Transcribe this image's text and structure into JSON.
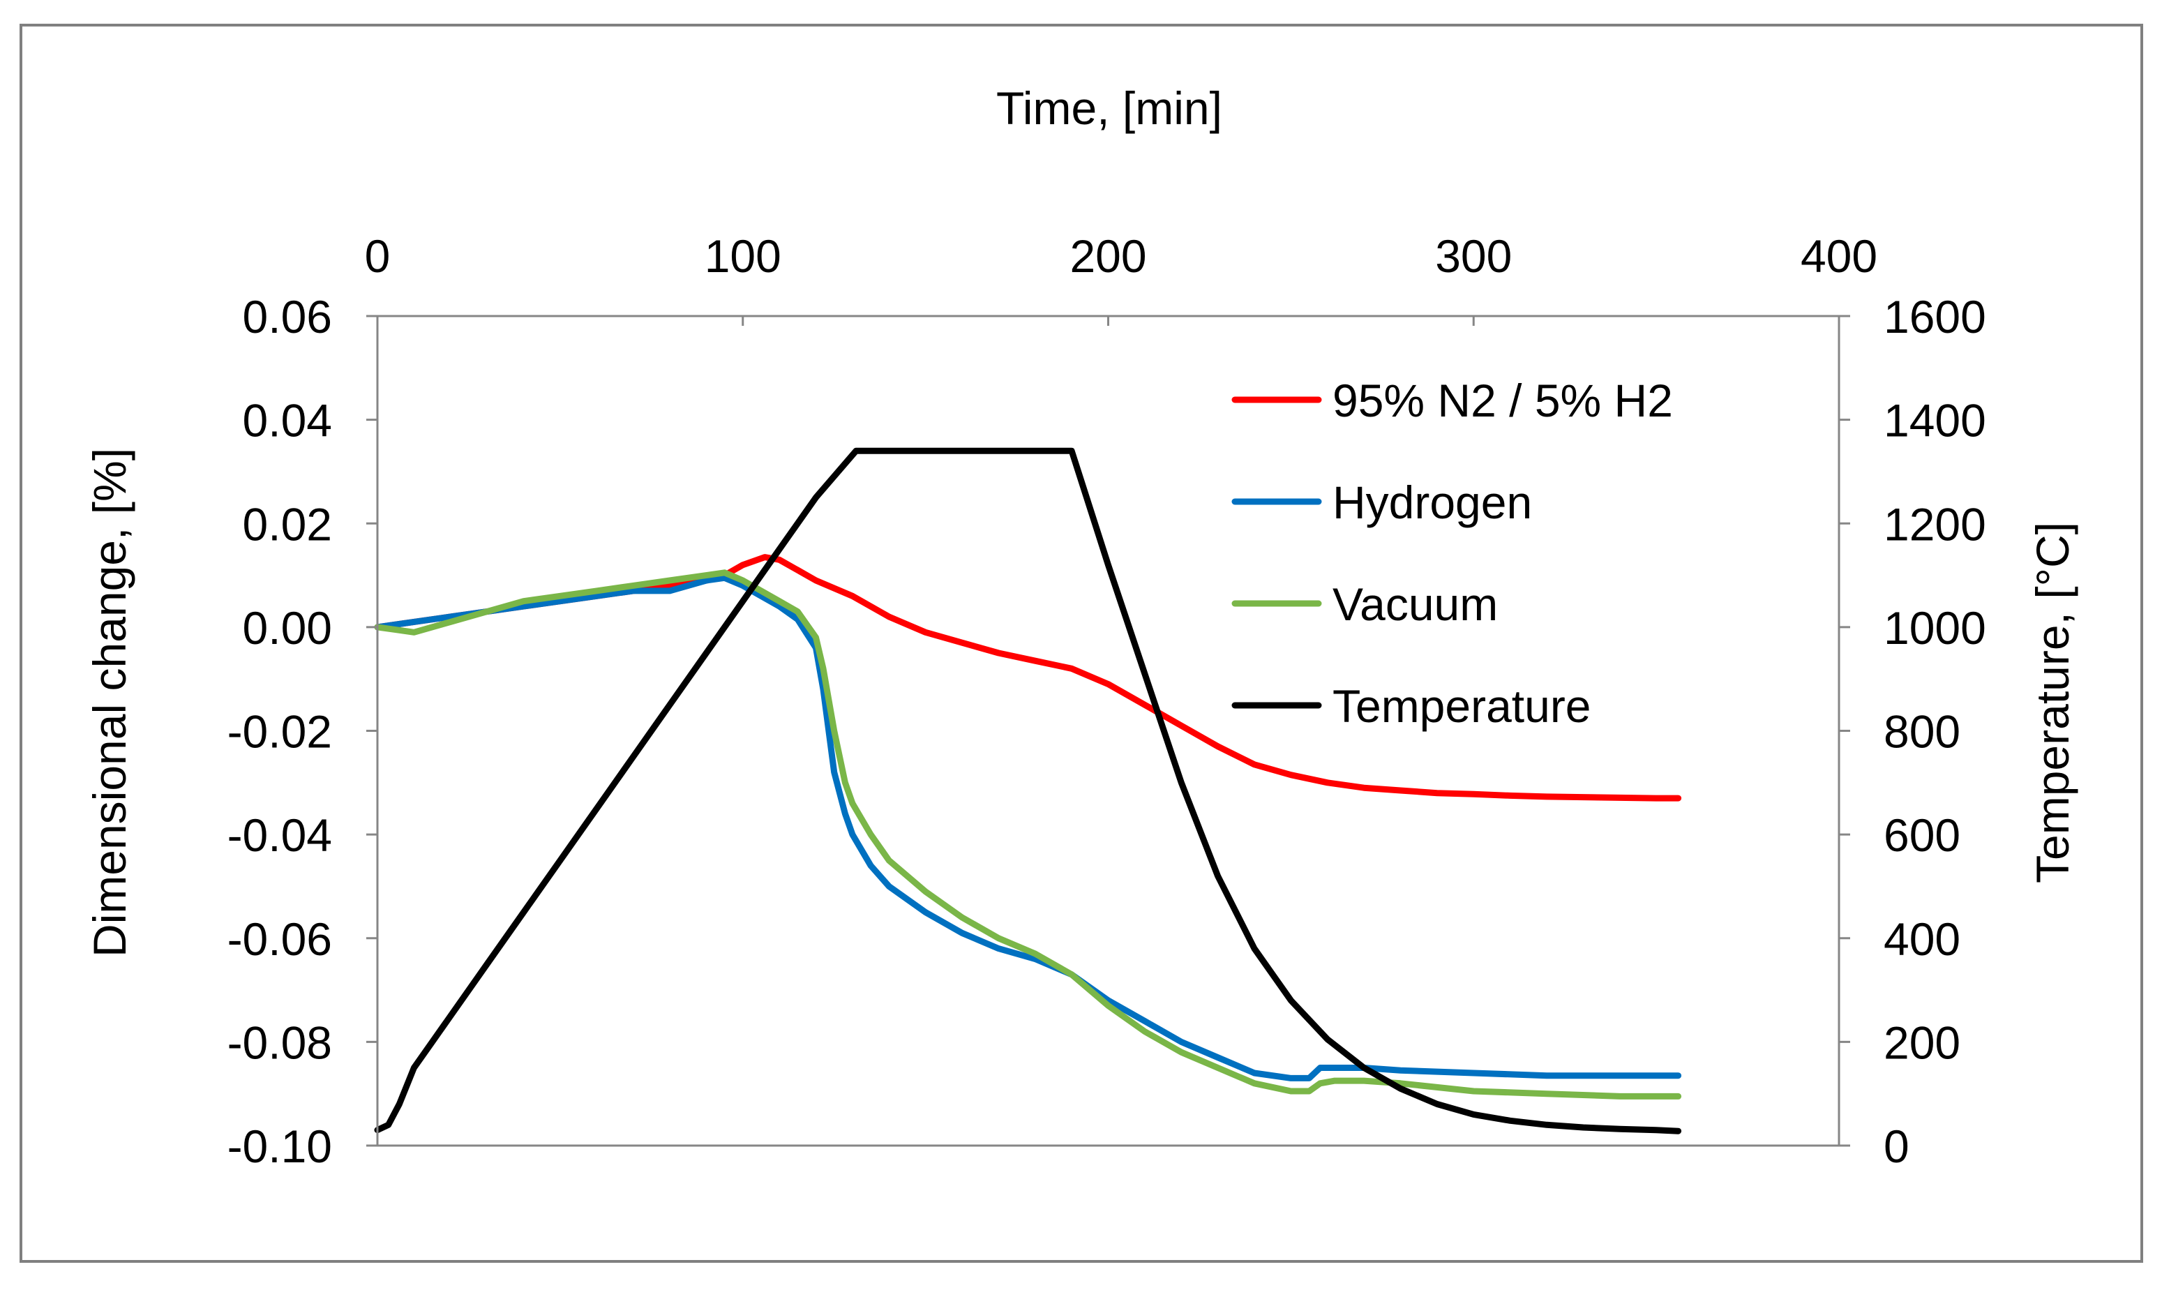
{
  "chart_data": {
    "type": "line",
    "title": "Time, [min]",
    "x_axis": {
      "label": "Time, [min]",
      "position": "top",
      "range": [
        0,
        400
      ],
      "ticks": [
        0,
        100,
        200,
        300,
        400
      ],
      "tick_labels": [
        "0",
        "100",
        "200",
        "300",
        "400"
      ]
    },
    "y_axis_left": {
      "label": "Dimensional change, [%]",
      "range": [
        -0.1,
        0.06
      ],
      "ticks": [
        0.06,
        0.04,
        0.02,
        0.0,
        -0.02,
        -0.04,
        -0.06,
        -0.08,
        -0.1
      ],
      "tick_labels": [
        "0.06",
        "0.04",
        "0.02",
        "0.00",
        "-0.02",
        "-0.04",
        "-0.06",
        "-0.08",
        "-0.10"
      ]
    },
    "y_axis_right": {
      "label": "Temperature, [°C]",
      "range": [
        0,
        1600
      ],
      "ticks": [
        1600,
        1400,
        1200,
        1000,
        800,
        600,
        400,
        200,
        0
      ],
      "tick_labels": [
        "1600",
        "1400",
        "1200",
        "1000",
        "800",
        "600",
        "400",
        "200",
        "0"
      ]
    },
    "grid": false,
    "legend_position": "top-right",
    "series": [
      {
        "name": "95% N2 / 5% H2",
        "color": "#ff0000",
        "axis": "left",
        "x": [
          0,
          10,
          20,
          30,
          40,
          50,
          60,
          70,
          80,
          90,
          95,
          100,
          106,
          110,
          115,
          120,
          130,
          140,
          150,
          160,
          170,
          180,
          190,
          200,
          210,
          220,
          230,
          240,
          250,
          260,
          270,
          280,
          290,
          300,
          310,
          320,
          330,
          340,
          350,
          356
        ],
        "values": [
          0.0,
          0.001,
          0.002,
          0.003,
          0.004,
          0.005,
          0.006,
          0.007,
          0.008,
          0.009,
          0.01,
          0.012,
          0.0135,
          0.013,
          0.011,
          0.009,
          0.006,
          0.002,
          -0.001,
          -0.003,
          -0.005,
          -0.0065,
          -0.008,
          -0.011,
          -0.015,
          -0.019,
          -0.023,
          -0.0265,
          -0.0285,
          -0.03,
          -0.031,
          -0.0315,
          -0.032,
          -0.0322,
          -0.0325,
          -0.0327,
          -0.0328,
          -0.0329,
          -0.033,
          -0.033
        ]
      },
      {
        "name": "Hydrogen",
        "color": "#0070c0",
        "axis": "left",
        "x": [
          0,
          10,
          20,
          30,
          40,
          50,
          60,
          70,
          80,
          90,
          95,
          100,
          110,
          115,
          120,
          122,
          125,
          128,
          130,
          135,
          140,
          150,
          160,
          170,
          180,
          190,
          200,
          210,
          220,
          230,
          240,
          250,
          255,
          258,
          262,
          270,
          280,
          300,
          320,
          340,
          356
        ],
        "values": [
          0.0,
          0.001,
          0.002,
          0.003,
          0.004,
          0.005,
          0.006,
          0.007,
          0.007,
          0.009,
          0.0095,
          0.008,
          0.004,
          0.0015,
          -0.004,
          -0.012,
          -0.028,
          -0.036,
          -0.04,
          -0.046,
          -0.05,
          -0.055,
          -0.059,
          -0.062,
          -0.064,
          -0.067,
          -0.072,
          -0.076,
          -0.08,
          -0.083,
          -0.086,
          -0.087,
          -0.087,
          -0.085,
          -0.085,
          -0.085,
          -0.0855,
          -0.086,
          -0.0865,
          -0.0865,
          -0.0865
        ]
      },
      {
        "name": "Vacuum",
        "color": "#7ab648",
        "axis": "left",
        "x": [
          0,
          5,
          10,
          20,
          30,
          40,
          50,
          60,
          70,
          80,
          90,
          95,
          100,
          110,
          115,
          120,
          122,
          125,
          128,
          130,
          135,
          140,
          150,
          160,
          170,
          180,
          190,
          200,
          210,
          220,
          230,
          240,
          250,
          255,
          258,
          262,
          270,
          280,
          300,
          320,
          340,
          356
        ],
        "values": [
          0.0,
          -0.0005,
          -0.001,
          0.001,
          0.003,
          0.005,
          0.006,
          0.007,
          0.008,
          0.009,
          0.01,
          0.0105,
          0.009,
          0.005,
          0.003,
          -0.002,
          -0.008,
          -0.02,
          -0.03,
          -0.034,
          -0.04,
          -0.045,
          -0.051,
          -0.056,
          -0.06,
          -0.063,
          -0.067,
          -0.073,
          -0.078,
          -0.082,
          -0.085,
          -0.088,
          -0.0895,
          -0.0895,
          -0.088,
          -0.0875,
          -0.0875,
          -0.088,
          -0.0895,
          -0.09,
          -0.0905,
          -0.0905
        ]
      },
      {
        "name": "Temperature",
        "color": "#000000",
        "axis": "right",
        "x": [
          0,
          3,
          6,
          10,
          15,
          20,
          30,
          40,
          50,
          60,
          70,
          80,
          90,
          100,
          110,
          120,
          131,
          150,
          170,
          190,
          200,
          210,
          220,
          230,
          240,
          250,
          260,
          270,
          280,
          290,
          300,
          310,
          320,
          330,
          340,
          350,
          356
        ],
        "values": [
          30,
          40,
          80,
          150,
          200,
          250,
          350,
          450,
          550,
          650,
          750,
          850,
          950,
          1050,
          1150,
          1250,
          1340,
          1340,
          1340,
          1340,
          1120,
          910,
          700,
          520,
          380,
          280,
          205,
          150,
          110,
          80,
          60,
          48,
          40,
          35,
          32,
          30,
          28
        ]
      }
    ]
  }
}
